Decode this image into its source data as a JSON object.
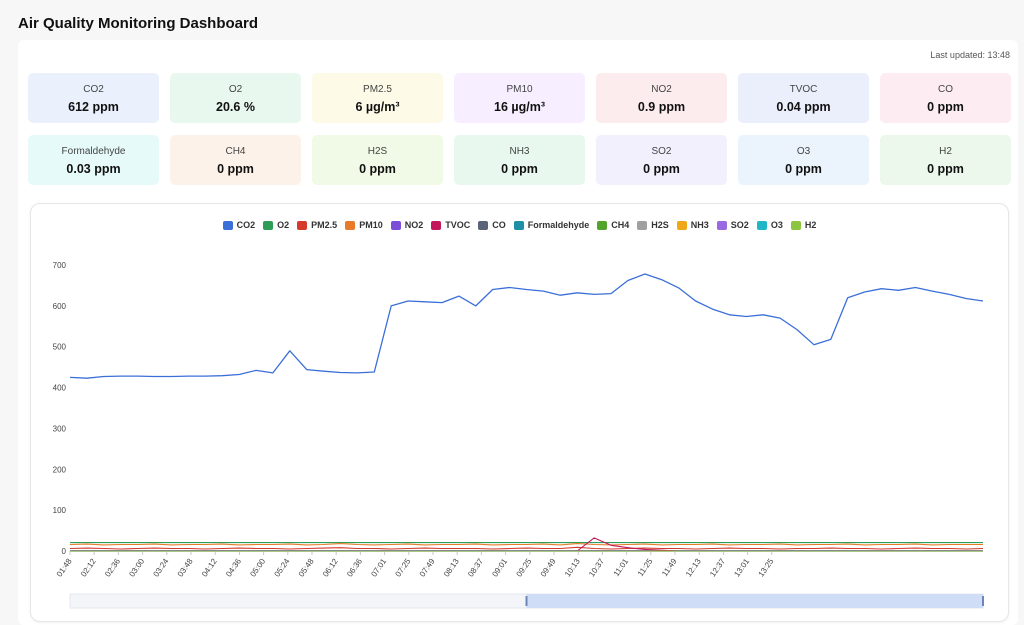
{
  "header": {
    "title": "Air Quality Monitoring Dashboard"
  },
  "status": {
    "last_updated": "Last updated: 13:48"
  },
  "metrics": [
    {
      "name": "CO2",
      "value": "612 ppm",
      "bg": "#eaf1fd"
    },
    {
      "name": "O2",
      "value": "20.6 %",
      "bg": "#e9f8ef"
    },
    {
      "name": "PM2.5",
      "value": "6 µg/m³",
      "bg": "#fdfbe7"
    },
    {
      "name": "PM10",
      "value": "16 µg/m³",
      "bg": "#f7efff"
    },
    {
      "name": "NO2",
      "value": "0.9 ppm",
      "bg": "#fdecee"
    },
    {
      "name": "TVOC",
      "value": "0.04 ppm",
      "bg": "#ebeffc"
    },
    {
      "name": "CO",
      "value": "0 ppm",
      "bg": "#fdedf2"
    },
    {
      "name": "Formaldehyde",
      "value": "0.03 ppm",
      "bg": "#e6fafa"
    },
    {
      "name": "CH4",
      "value": "0 ppm",
      "bg": "#fdf2e9"
    },
    {
      "name": "H2S",
      "value": "0 ppm",
      "bg": "#f1f9e7"
    },
    {
      "name": "NH3",
      "value": "0 ppm",
      "bg": "#e9f8ee"
    },
    {
      "name": "SO2",
      "value": "0 ppm",
      "bg": "#f2f0fd"
    },
    {
      "name": "O3",
      "value": "0 ppm",
      "bg": "#ebf3fd"
    },
    {
      "name": "H2",
      "value": "0 ppm",
      "bg": "#ecf8ec"
    }
  ],
  "chart_data": {
    "type": "line",
    "legend_position": "top-center",
    "grid": false,
    "ylim": [
      0,
      700
    ],
    "y_ticks": [
      "0",
      "100",
      "200",
      "300",
      "400",
      "500",
      "600",
      "700"
    ],
    "x_ticks": [
      "01:48",
      "02:12",
      "02:36",
      "03:00",
      "03:24",
      "03:48",
      "04:12",
      "04:36",
      "05:00",
      "05:24",
      "05:48",
      "06:12",
      "06:36",
      "07:01",
      "07:25",
      "07:49",
      "08:13",
      "08:37",
      "09:01",
      "09:25",
      "09:49",
      "10:13",
      "10:37",
      "11:01",
      "11:25",
      "11:49",
      "12:13",
      "12:37",
      "13:01",
      "13:25"
    ],
    "series": [
      {
        "name": "CO2",
        "color": "#3b6fd8",
        "values": [
          425,
          423,
          427,
          428,
          428,
          427,
          427,
          428,
          428,
          429,
          432,
          442,
          436,
          490,
          444,
          440,
          437,
          436,
          438,
          600,
          612,
          610,
          608,
          624,
          600,
          640,
          645,
          640,
          636,
          626,
          632,
          628,
          630,
          662,
          678,
          664,
          644,
          612,
          592,
          578,
          574,
          578,
          570,
          542,
          505,
          518,
          620,
          634,
          642,
          638,
          645,
          636,
          628,
          618,
          612
        ]
      },
      {
        "name": "O2",
        "color": "#2e9e56",
        "values": [
          20.6,
          20.6,
          20.6,
          20.6,
          20.6,
          20.6,
          20.6,
          20.6,
          20.6,
          20.6,
          20.6,
          20.6,
          20.6,
          20.6,
          20.6,
          20.6,
          20.6,
          20.6,
          20.6,
          20.6,
          20.6,
          20.6,
          20.6,
          20.6,
          20.6,
          20.6,
          20.6,
          20.6,
          20.6,
          20.6,
          20.6,
          20.6,
          20.6,
          20.6,
          20.6,
          20.6,
          20.6,
          20.6,
          20.6,
          20.6,
          20.6,
          20.6,
          20.6,
          20.6,
          20.6,
          20.6,
          20.6,
          20.6,
          20.6,
          20.6,
          20.6,
          20.6,
          20.6,
          20.6,
          20.6
        ]
      },
      {
        "name": "PM2.5",
        "color": "#d33a2c",
        "values": [
          6,
          7,
          6,
          5,
          6,
          7,
          6,
          6,
          5,
          6,
          7,
          6,
          6,
          5,
          6,
          7,
          8,
          6,
          6,
          5,
          6,
          7,
          6,
          6,
          6,
          5,
          6,
          7,
          6,
          6,
          9,
          6,
          5,
          6,
          7,
          6,
          6,
          5,
          6,
          7,
          6,
          6,
          5,
          6,
          6,
          7,
          6,
          6,
          5,
          6,
          7,
          6,
          6,
          5,
          6
        ]
      },
      {
        "name": "PM10",
        "color": "#e87b2a",
        "values": [
          16,
          17,
          15,
          16,
          16,
          17,
          15,
          16,
          16,
          17,
          15,
          16,
          16,
          17,
          15,
          16,
          18,
          16,
          15,
          16,
          17,
          15,
          16,
          16,
          17,
          15,
          16,
          16,
          17,
          15,
          18,
          16,
          15,
          16,
          17,
          15,
          16,
          16,
          17,
          15,
          16,
          16,
          17,
          15,
          16,
          16,
          17,
          15,
          16,
          16,
          17,
          15,
          16,
          16,
          16
        ]
      },
      {
        "name": "NO2",
        "color": "#7b4fd8",
        "values": [
          1,
          1,
          1,
          1,
          1,
          1,
          1,
          1,
          1,
          1,
          1,
          1,
          1,
          1,
          1,
          1,
          1,
          1,
          1,
          1,
          1,
          1,
          1,
          1,
          1,
          1,
          1,
          1,
          1,
          1,
          1,
          1,
          1,
          1,
          1,
          1,
          1,
          1,
          1,
          1,
          1,
          1,
          1,
          1,
          1,
          1,
          1,
          1,
          1,
          1,
          1,
          1,
          1,
          1,
          1
        ]
      },
      {
        "name": "TVOC",
        "color": "#c2185b",
        "values": [
          0,
          0,
          0,
          0,
          0,
          0,
          0,
          0,
          0,
          0,
          0,
          0,
          0,
          0,
          0,
          0,
          0,
          0,
          0,
          0,
          0,
          0,
          0,
          0,
          0,
          0,
          0,
          0,
          0,
          0,
          0,
          32,
          14,
          8,
          4,
          2,
          0,
          0,
          0,
          0,
          0,
          0,
          0,
          0,
          0,
          0,
          0,
          0,
          0,
          0,
          0,
          0,
          0,
          0,
          0
        ]
      },
      {
        "name": "CO",
        "color": "#5a6478",
        "values": [
          0,
          0,
          0,
          0,
          0,
          0,
          0,
          0,
          0,
          0,
          0,
          0,
          0,
          0,
          0,
          0,
          0,
          0,
          0,
          0,
          0,
          0,
          0,
          0,
          0,
          0,
          0,
          0,
          0,
          0,
          0,
          0,
          0,
          0,
          0,
          0,
          0,
          0,
          0,
          0,
          0,
          0,
          0,
          0,
          0,
          0,
          0,
          0,
          0,
          0,
          0,
          0,
          0,
          0,
          0
        ]
      },
      {
        "name": "Formaldehyde",
        "color": "#1f8fa8",
        "values": [
          0,
          0,
          0,
          0,
          0,
          0,
          0,
          0,
          0,
          0,
          0,
          0,
          0,
          0,
          0,
          0,
          0,
          0,
          0,
          0,
          0,
          0,
          0,
          0,
          0,
          0,
          0,
          0,
          0,
          0,
          0,
          0,
          0,
          0,
          0,
          0,
          0,
          0,
          0,
          0,
          0,
          0,
          0,
          0,
          0,
          0,
          0,
          0,
          0,
          0,
          0,
          0,
          0,
          0,
          0
        ]
      },
      {
        "name": "CH4",
        "color": "#52a32b",
        "values": [
          0,
          0,
          0,
          0,
          0,
          0,
          0,
          0,
          0,
          0,
          0,
          0,
          0,
          0,
          0,
          0,
          0,
          0,
          0,
          0,
          0,
          0,
          0,
          0,
          0,
          0,
          0,
          0,
          0,
          0,
          0,
          0,
          0,
          0,
          0,
          0,
          0,
          0,
          0,
          0,
          0,
          0,
          0,
          0,
          0,
          0,
          0,
          0,
          0,
          0,
          0,
          0,
          0,
          0,
          0
        ]
      },
      {
        "name": "H2S",
        "color": "#a0a0a0",
        "values": [
          0,
          0,
          0,
          0,
          0,
          0,
          0,
          0,
          0,
          0,
          0,
          0,
          0,
          0,
          0,
          0,
          0,
          0,
          0,
          0,
          0,
          0,
          0,
          0,
          0,
          0,
          0,
          0,
          0,
          0,
          0,
          0,
          0,
          0,
          0,
          0,
          0,
          0,
          0,
          0,
          0,
          0,
          0,
          0,
          0,
          0,
          0,
          0,
          0,
          0,
          0,
          0,
          0,
          0,
          0
        ]
      },
      {
        "name": "NH3",
        "color": "#f0a818",
        "values": [
          0,
          0,
          0,
          0,
          0,
          0,
          0,
          0,
          0,
          0,
          0,
          0,
          0,
          0,
          0,
          0,
          0,
          0,
          0,
          0,
          0,
          0,
          0,
          0,
          0,
          0,
          0,
          0,
          0,
          0,
          0,
          0,
          0,
          0,
          0,
          0,
          0,
          0,
          0,
          0,
          0,
          0,
          0,
          0,
          0,
          0,
          0,
          0,
          0,
          0,
          0,
          0,
          0,
          0,
          0
        ]
      },
      {
        "name": "SO2",
        "color": "#9a68e0",
        "values": [
          0,
          0,
          0,
          0,
          0,
          0,
          0,
          0,
          0,
          0,
          0,
          0,
          0,
          0,
          0,
          0,
          0,
          0,
          0,
          0,
          0,
          0,
          0,
          0,
          0,
          0,
          0,
          0,
          0,
          0,
          0,
          0,
          0,
          0,
          0,
          0,
          0,
          0,
          0,
          0,
          0,
          0,
          0,
          0,
          0,
          0,
          0,
          0,
          0,
          0,
          0,
          0,
          0,
          0,
          0
        ]
      },
      {
        "name": "O3",
        "color": "#1fb6c8",
        "values": [
          0,
          0,
          0,
          0,
          0,
          0,
          0,
          0,
          0,
          0,
          0,
          0,
          0,
          0,
          0,
          0,
          0,
          0,
          0,
          0,
          0,
          0,
          0,
          0,
          0,
          0,
          0,
          0,
          0,
          0,
          0,
          0,
          0,
          0,
          0,
          0,
          0,
          0,
          0,
          0,
          0,
          0,
          0,
          0,
          0,
          0,
          0,
          0,
          0,
          0,
          0,
          0,
          0,
          0,
          0
        ]
      },
      {
        "name": "H2",
        "color": "#8cc63e",
        "values": [
          0,
          0,
          0,
          0,
          0,
          0,
          0,
          0,
          0,
          0,
          0,
          0,
          0,
          0,
          0,
          0,
          0,
          0,
          0,
          0,
          0,
          0,
          0,
          0,
          0,
          0,
          0,
          0,
          0,
          0,
          0,
          0,
          0,
          0,
          0,
          0,
          0,
          0,
          0,
          0,
          0,
          0,
          0,
          0,
          0,
          0,
          0,
          0,
          0,
          0,
          0,
          0,
          0,
          0,
          0
        ]
      }
    ],
    "zoom_range": [
      0.5,
      1.0
    ]
  }
}
